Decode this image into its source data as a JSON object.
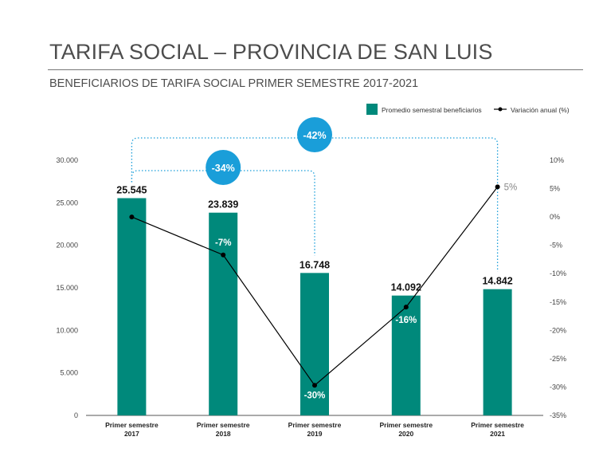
{
  "header": {
    "title": "TARIFA SOCIAL – PROVINCIA DE SAN LUIS",
    "subtitle": "BENEFICIARIOS DE TARIFA SOCIAL PRIMER SEMESTRE 2017-2021"
  },
  "chart_data": {
    "type": "bar",
    "categories": [
      [
        "Primer semestre",
        "2017"
      ],
      [
        "Primer semestre",
        "2018"
      ],
      [
        "Primer semestre",
        "2019"
      ],
      [
        "Primer semestre",
        "2020"
      ],
      [
        "Primer semestre",
        "2021"
      ]
    ],
    "series": [
      {
        "name": "Promedio semestral beneficiarios",
        "type": "bar",
        "axis": "left",
        "color": "#00897b",
        "values": [
          25545,
          23839,
          16748,
          14092,
          14842
        ],
        "labels": [
          "25.545",
          "23.839",
          "16.748",
          "14.092",
          "14.842"
        ]
      },
      {
        "name": "Variación anual (%)",
        "type": "line",
        "axis": "right",
        "color": "#000000",
        "values": [
          0,
          -6.7,
          -29.7,
          -15.9,
          5.3
        ],
        "labels": [
          "",
          "-7%",
          "-30%",
          "-16%",
          "5%"
        ]
      }
    ],
    "y_left": {
      "lim": [
        0,
        30000
      ],
      "ticks": [
        0,
        5000,
        10000,
        15000,
        20000,
        25000,
        30000
      ],
      "tick_labels": [
        "0",
        "5.000",
        "10.000",
        "15.000",
        "20.000",
        "25.000",
        "30.000"
      ]
    },
    "y_right": {
      "lim": [
        -35,
        10
      ],
      "ticks": [
        -35,
        -30,
        -25,
        -20,
        -15,
        -10,
        -5,
        0,
        5,
        10
      ],
      "tick_labels": [
        "-35%",
        "-30%",
        "-25%",
        "-20%",
        "-15%",
        "-10%",
        "-5%",
        "0%",
        "5%",
        "10%"
      ]
    },
    "annotations": [
      {
        "label": "-34%",
        "from": 0,
        "to": 2,
        "color": "#1a9ed9"
      },
      {
        "label": "-42%",
        "from": 0,
        "to": 4,
        "color": "#1a9ed9"
      }
    ],
    "legend_position": "top-right",
    "grid": false
  }
}
